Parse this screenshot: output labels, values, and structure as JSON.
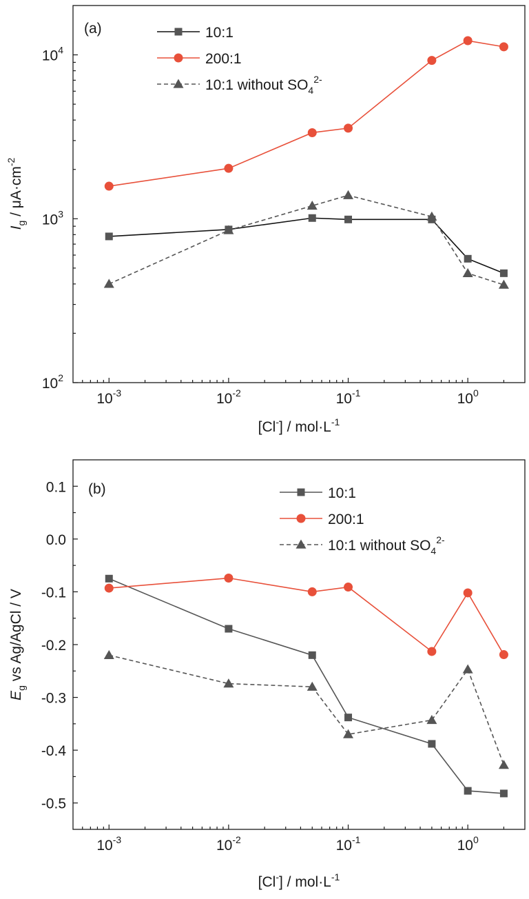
{
  "chart_data": [
    {
      "panel": "(a)",
      "type": "line",
      "xscale": "log",
      "yscale": "log",
      "xlim": [
        0.0005,
        3
      ],
      "ylim": [
        100,
        20000
      ],
      "xlabel_parts": [
        "[Cl",
        "-",
        "] / mol·L",
        "-1"
      ],
      "ylabel_parts": [
        "I",
        "g",
        " / μA·cm",
        "-2"
      ],
      "x_ticks": [
        {
          "value": 0.001,
          "base": "10",
          "exp": "-3"
        },
        {
          "value": 0.01,
          "base": "10",
          "exp": "-2"
        },
        {
          "value": 0.1,
          "base": "10",
          "exp": "-1"
        },
        {
          "value": 1,
          "base": "10",
          "exp": "0"
        }
      ],
      "y_ticks": [
        {
          "value": 100,
          "base": "10",
          "exp": "2"
        },
        {
          "value": 1000,
          "base": "10",
          "exp": "3"
        },
        {
          "value": 10000,
          "base": "10",
          "exp": "4"
        }
      ],
      "x": [
        0.001,
        0.01,
        0.05,
        0.1,
        0.5,
        1,
        2
      ],
      "series": [
        {
          "name": "10:1",
          "name_sub": "",
          "name_sup": "",
          "color": "#555555",
          "line_color": "#111111",
          "marker": "square",
          "dashed": false,
          "values": [
            780,
            860,
            1010,
            990,
            990,
            570,
            465
          ]
        },
        {
          "name": "200:1",
          "name_sub": "",
          "name_sup": "",
          "color": "#e8503a",
          "line_color": "#e8503a",
          "marker": "circle",
          "dashed": false,
          "values": [
            1580,
            2030,
            3350,
            3570,
            9250,
            12200,
            11200
          ]
        },
        {
          "name": "10:1 without SO",
          "name_sub": "4",
          "name_sup": "2-",
          "color": "#555555",
          "line_color": "#555555",
          "marker": "triangle",
          "dashed": true,
          "values": [
            400,
            850,
            1200,
            1390,
            1030,
            465,
            395
          ]
        }
      ]
    },
    {
      "panel": "(b)",
      "type": "line",
      "xscale": "log",
      "yscale": "linear",
      "xlim": [
        0.0005,
        3
      ],
      "ylim": [
        -0.55,
        0.15
      ],
      "xlabel_parts": [
        "[Cl",
        "-",
        "] / mol·L",
        "-1"
      ],
      "ylabel_parts": [
        "E",
        "g",
        " vs Ag/AgCl / V",
        ""
      ],
      "x_ticks": [
        {
          "value": 0.001,
          "base": "10",
          "exp": "-3"
        },
        {
          "value": 0.01,
          "base": "10",
          "exp": "-2"
        },
        {
          "value": 0.1,
          "base": "10",
          "exp": "-1"
        },
        {
          "value": 1,
          "base": "10",
          "exp": "0"
        }
      ],
      "y_ticks": [
        {
          "value": 0.1,
          "label": "0.1"
        },
        {
          "value": 0.0,
          "label": "0.0"
        },
        {
          "value": -0.1,
          "label": "-0.1"
        },
        {
          "value": -0.2,
          "label": "-0.2"
        },
        {
          "value": -0.3,
          "label": "-0.3"
        },
        {
          "value": -0.4,
          "label": "-0.4"
        },
        {
          "value": -0.5,
          "label": "-0.5"
        }
      ],
      "x": [
        0.001,
        0.01,
        0.05,
        0.1,
        0.5,
        1,
        2
      ],
      "series": [
        {
          "name": "10:1",
          "name_sub": "",
          "name_sup": "",
          "color": "#555555",
          "line_color": "#555555",
          "marker": "square",
          "dashed": false,
          "values": [
            -0.075,
            -0.17,
            -0.22,
            -0.338,
            -0.388,
            -0.477,
            -0.482
          ]
        },
        {
          "name": "200:1",
          "name_sub": "",
          "name_sup": "",
          "color": "#e8503a",
          "line_color": "#e8503a",
          "marker": "circle",
          "dashed": false,
          "values": [
            -0.093,
            -0.074,
            -0.1,
            -0.091,
            -0.213,
            -0.102,
            -0.219
          ]
        },
        {
          "name": "10:1 without SO",
          "name_sub": "4",
          "name_sup": "2-",
          "color": "#555555",
          "line_color": "#555555",
          "marker": "triangle",
          "dashed": true,
          "values": [
            -0.22,
            -0.274,
            -0.28,
            -0.37,
            -0.343,
            -0.247,
            -0.428
          ]
        }
      ]
    }
  ]
}
